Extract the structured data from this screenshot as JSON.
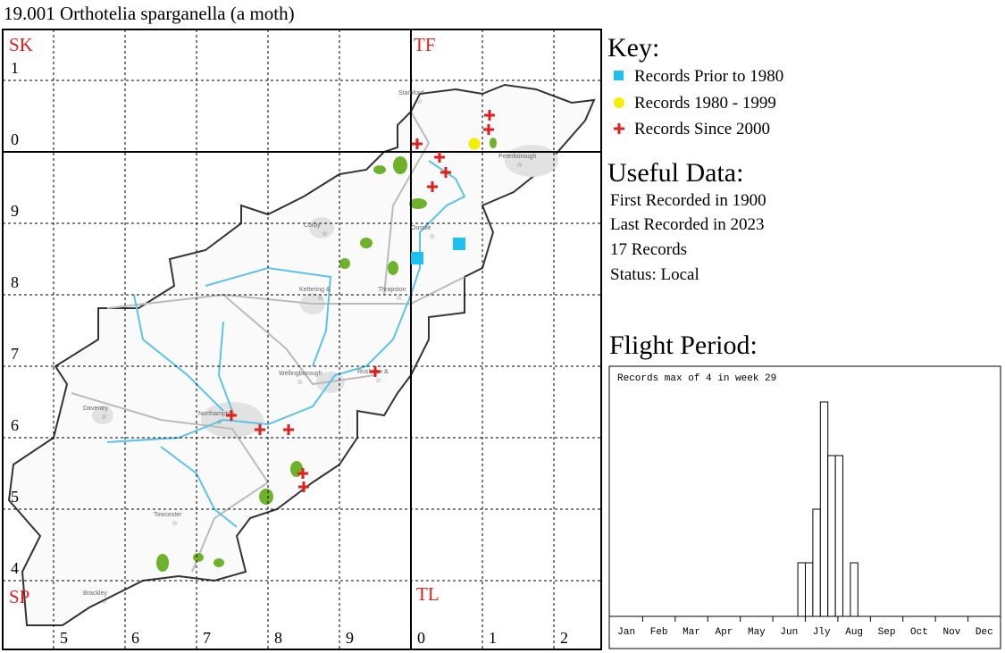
{
  "title": "19.001 Orthotelia sparganella (a moth)",
  "map": {
    "squares": [
      "SK",
      "TF",
      "SP",
      "TL"
    ],
    "rows": [
      "1",
      "0",
      "9",
      "8",
      "7",
      "6",
      "5",
      "4"
    ],
    "columns": [
      "5",
      "6",
      "7",
      "8",
      "9",
      "0",
      "1",
      "2"
    ],
    "towns": [
      "Stamford",
      "Peterborough",
      "Corby",
      "Oundle",
      "Kettering &",
      "Thrapston",
      "Wellingborough",
      "Rushden &",
      "Daventry",
      "Northampton",
      "Towcester",
      "Brackley"
    ]
  },
  "key": {
    "title": "Key:",
    "items": [
      "Records Prior to 1980",
      "Records 1980 - 1999",
      "Records Since 2000"
    ]
  },
  "useful_data": {
    "title": "Useful Data:",
    "lines": [
      "First Recorded in 1900",
      "Last Recorded in 2023",
      "17 Records",
      "Status: Local"
    ]
  },
  "flight_period": {
    "title": "Flight Period:",
    "note": "Records max of 4 in week 29",
    "months": [
      "Jan",
      "Feb",
      "Mar",
      "Apr",
      "May",
      "Jun",
      "Jly",
      "Aug",
      "Sep",
      "Oct",
      "Nov",
      "Dec"
    ],
    "weeks": [
      26,
      27,
      28,
      29,
      30,
      31,
      33
    ],
    "counts": [
      1,
      1,
      2,
      4,
      3,
      3,
      1
    ]
  }
}
